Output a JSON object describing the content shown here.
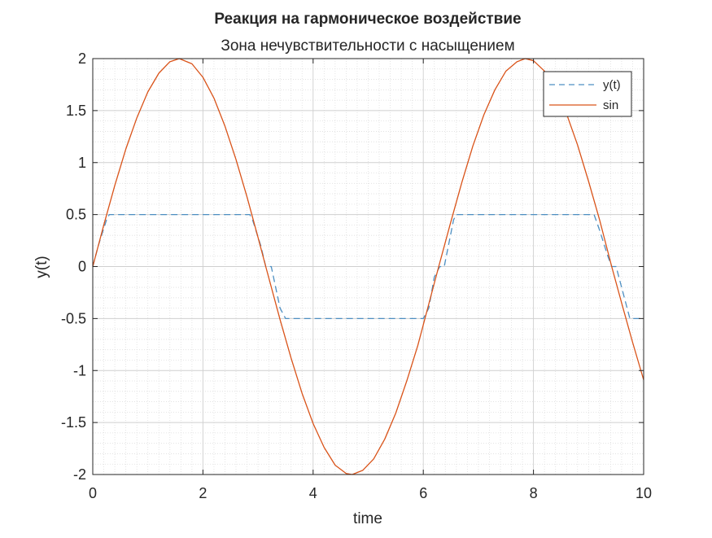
{
  "chart_data": {
    "type": "line",
    "title": "Реакция на гармоническое воздействие",
    "subtitle": "Зона нечувствительности с насыщением",
    "xlabel": "time",
    "ylabel": "y(t)",
    "xlim": [
      0,
      10
    ],
    "ylim": [
      -2,
      2
    ],
    "xticks": [
      0,
      2,
      4,
      6,
      8,
      10
    ],
    "xtick_labels": [
      "0",
      "2",
      "4",
      "6",
      "8",
      "10"
    ],
    "yticks": [
      -2,
      -1.5,
      -1,
      -0.5,
      0,
      0.5,
      1,
      1.5,
      2
    ],
    "ytick_labels": [
      "-2",
      "-1.5",
      "-1",
      "-0.5",
      "0",
      "0.5",
      "1",
      "1.5",
      "2"
    ],
    "grid": true,
    "minor_grid": true,
    "legend_position": "top-right",
    "series": [
      {
        "name": "y(t)",
        "style": "dashed",
        "color": "#4d8fc2",
        "x": [
          0,
          0.1,
          0.25,
          0.3,
          2.85,
          2.9,
          3.05,
          3.14,
          3.24,
          3.4,
          3.5,
          6.0,
          6.1,
          6.2,
          6.3,
          6.38,
          6.55,
          6.6,
          9.1,
          9.2,
          9.35,
          9.42,
          9.5,
          9.65,
          9.75,
          10
        ],
        "y": [
          0,
          0.2,
          0.45,
          0.5,
          0.5,
          0.45,
          0.2,
          0,
          0,
          -0.4,
          -0.5,
          -0.5,
          -0.4,
          -0.1,
          0,
          0,
          0.45,
          0.5,
          0.5,
          0.35,
          0.1,
          0,
          0,
          -0.3,
          -0.5,
          -0.5
        ]
      },
      {
        "name": "sin",
        "style": "solid",
        "color": "#d95319",
        "amplitude": 2,
        "x": [
          0,
          0.2,
          0.4,
          0.6,
          0.8,
          1.0,
          1.2,
          1.4,
          1.57,
          1.8,
          2.0,
          2.2,
          2.4,
          2.6,
          2.8,
          3.0,
          3.14,
          3.4,
          3.6,
          3.8,
          4.0,
          4.2,
          4.4,
          4.6,
          4.71,
          4.9,
          5.1,
          5.3,
          5.5,
          5.7,
          5.9,
          6.1,
          6.28,
          6.5,
          6.7,
          6.9,
          7.1,
          7.3,
          7.5,
          7.7,
          7.85,
          8.0,
          8.2,
          8.4,
          8.6,
          8.8,
          9.0,
          9.2,
          9.42,
          9.6,
          9.8,
          10
        ],
        "y": [
          0,
          0.4,
          0.78,
          1.13,
          1.43,
          1.68,
          1.86,
          1.97,
          2.0,
          1.95,
          1.82,
          1.62,
          1.35,
          1.03,
          0.67,
          0.28,
          0,
          -0.51,
          -0.88,
          -1.22,
          -1.51,
          -1.74,
          -1.91,
          -1.99,
          -2.0,
          -1.96,
          -1.85,
          -1.66,
          -1.41,
          -1.1,
          -0.76,
          -0.36,
          0,
          0.43,
          0.81,
          1.16,
          1.46,
          1.7,
          1.88,
          1.97,
          2.0,
          1.98,
          1.88,
          1.71,
          1.47,
          1.17,
          0.82,
          0.45,
          0,
          -0.35,
          -0.73,
          -1.09
        ]
      }
    ]
  }
}
